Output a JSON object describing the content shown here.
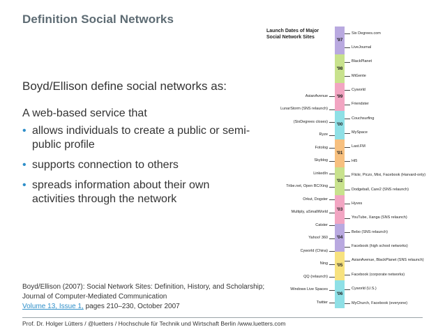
{
  "slide": {
    "title": "Definition Social Networks",
    "intro": "Boyd/Ellison define social networks as:",
    "lead": "A web-based service that",
    "bullets": [
      "allows individuals to create a public or semi-public profile",
      "supports connection to others",
      "spreads information about their own activities through the network"
    ],
    "bullet_glyph": "•",
    "accent_color": "#2f8fc9"
  },
  "citation": {
    "line1": "Boyd/Ellison (2007): Social Network Sites: Definition, History, and Scholarship;",
    "line2": "Journal of Computer-Mediated Communication",
    "link_text": "Volume 13, Issue 1,",
    "rest": " pages 210–230, October 2007"
  },
  "footer": {
    "text": "Prof. Dr. Holger Lütters / @luetters  / Hochschule für Technik und Wirtschaft Berlin /www.luetters.com"
  },
  "timeline": {
    "heading_line1": "Launch Dates of Major",
    "heading_line2": "Social Network Sites",
    "years": [
      {
        "label": "'97",
        "color": "#b9a9e0"
      },
      {
        "label": "'98",
        "color": "#c8e28d"
      },
      {
        "label": "'99",
        "color": "#f2a5c2"
      },
      {
        "label": "'00",
        "color": "#8fe0e6"
      },
      {
        "label": "'01",
        "color": "#f7c07f"
      },
      {
        "label": "'02",
        "color": "#c8e28d"
      },
      {
        "label": "'03",
        "color": "#f2a5c2"
      },
      {
        "label": "'04",
        "color": "#b9a9e0"
      },
      {
        "label": "'05",
        "color": "#f7e27f"
      },
      {
        "label": "'06",
        "color": "#8fe0e6"
      }
    ],
    "right_labels": [
      "Six Degrees.com",
      "LiveJournal",
      "BlackPlanet",
      "MiGente",
      "Cyworld",
      "Friendster",
      "Couchsurfing",
      "MySpace",
      "Last.FM",
      "Hi5",
      "Flickr, Piczo, Mixi, Facebook (Harvard-only)",
      "Dodgeball, Care2 (SNS relaunch)",
      "Hyves",
      "YouTube, Xanga (SNS relaunch)",
      "Bebo (SNS relaunch)",
      "Facebook (high school networks)",
      "AsianAvenue, BlackPlanet (SNS relaunch)",
      "Facebook (corporate networks)",
      "Cyworld (U.S.)",
      "MyChurch, Facebook (everyone)"
    ],
    "left_labels": [
      "AsianAvenue",
      "LunarStorm (SNS relaunch)",
      "(SixDegrees closes)",
      "Ryze",
      "Fotolog",
      "Skyblog",
      "LinkedIn",
      "Tribe.net, Open BC/Xing",
      "Orkut, Dogster",
      "Multiply, aSmallWorld",
      "Catster",
      "Yahoo! 360",
      "Cyworld (China)",
      "Ning",
      "QQ (relaunch)",
      "Windows Live Spaces",
      "Twitter"
    ]
  }
}
